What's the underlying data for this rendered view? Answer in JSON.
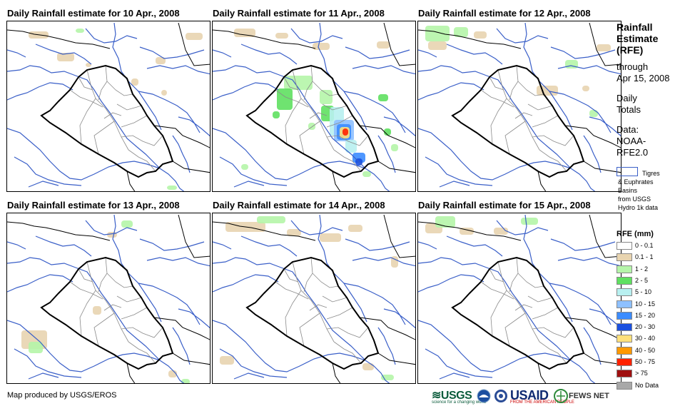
{
  "panels": [
    {
      "title": "Daily Rainfall estimate for 10 Apr., 2008"
    },
    {
      "title": "Daily Rainfall estimate for 11 Apr., 2008"
    },
    {
      "title": "Daily Rainfall estimate for 12 Apr., 2008"
    },
    {
      "title": "Daily Rainfall estimate for 13 Apr., 2008"
    },
    {
      "title": "Daily Rainfall estimate for 14 Apr., 2008"
    },
    {
      "title": "Daily Rainfall estimate for 15 Apr., 2008"
    }
  ],
  "side": {
    "title": "Rainfall\nEstimate\n(RFE)",
    "through": "through\nApr 15, 2008",
    "daily": "Daily\nTotals",
    "data_source": "Data:\nNOAA-\nRFE2.0",
    "basin_note": "Tigres\n& Euphrates\nBasins\nfrom USGS\nHydro 1k data"
  },
  "legend": {
    "title": "RFE (mm)",
    "items": [
      {
        "label": "0 - 0.1",
        "color": "#ffffff"
      },
      {
        "label": "0.1 - 1",
        "color": "#e8d4b0"
      },
      {
        "label": "1 - 2",
        "color": "#b5f5a9"
      },
      {
        "label": "2 - 5",
        "color": "#5fe060"
      },
      {
        "label": "5 - 10",
        "color": "#b8f0f0"
      },
      {
        "label": "10 - 15",
        "color": "#8ec0ff"
      },
      {
        "label": "15 - 20",
        "color": "#3c8cff"
      },
      {
        "label": "20 - 30",
        "color": "#1a50e0"
      },
      {
        "label": "30 - 40",
        "color": "#ffe07a"
      },
      {
        "label": "40 - 50",
        "color": "#ff9900"
      },
      {
        "label": "50 - 75",
        "color": "#ff2200"
      },
      {
        "label": "> 75",
        "color": "#a01010"
      },
      {
        "label": "No Data",
        "color": "#a8a8a8"
      }
    ]
  },
  "footer": {
    "credit": "Map produced by USGS/EROS",
    "logos": {
      "usgs": "USGS",
      "usgs_tag": "science for a changing world",
      "usaid": "USAID",
      "usaid_tag": "FROM THE AMERICAN PEOPLE",
      "fews": "FEWS NET"
    }
  },
  "colors": {
    "river": "#3a5fc8",
    "border": "#000000",
    "province": "#8a8a8a"
  }
}
